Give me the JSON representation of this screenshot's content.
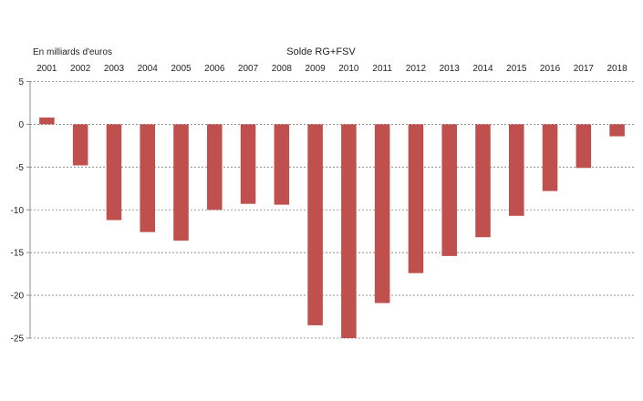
{
  "chart_data": {
    "type": "bar",
    "title": "Solde RG+FSV",
    "unit_label": "En milliards d'euros",
    "categories": [
      "2001",
      "2002",
      "2003",
      "2004",
      "2005",
      "2006",
      "2007",
      "2008",
      "2009",
      "2010",
      "2011",
      "2012",
      "2013",
      "2014",
      "2015",
      "2016",
      "2017",
      "2018"
    ],
    "values": [
      0.8,
      -4.8,
      -11.2,
      -12.6,
      -13.6,
      -10.0,
      -9.3,
      -9.4,
      -23.5,
      -25.0,
      -20.9,
      -17.4,
      -15.4,
      -13.2,
      -10.7,
      -7.8,
      -5.1,
      -1.4
    ],
    "ylim": [
      -25,
      5
    ],
    "yticks": [
      5,
      0,
      -5,
      -10,
      -15,
      -20,
      -25
    ],
    "xaxis_position": "top",
    "grid": true,
    "bar_color": "#c0504d"
  }
}
